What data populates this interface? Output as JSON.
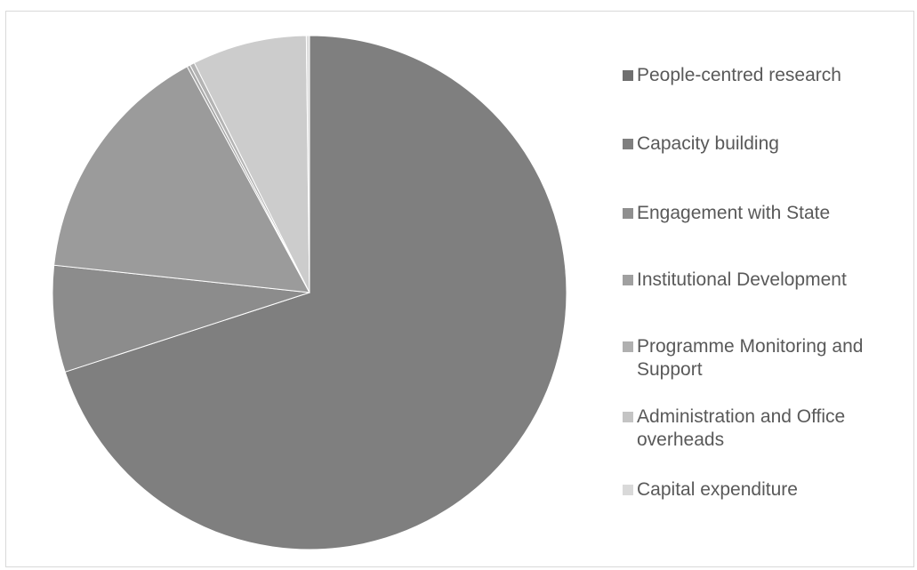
{
  "chart_data": {
    "type": "pie",
    "categories": [
      "People-centred research",
      "Capacity building",
      "Engagement with State",
      "Institutional Development",
      "Programme Monitoring and Support",
      "Administration and Office overheads",
      "Capital expenditure"
    ],
    "values": [
      70.0,
      6.7,
      15.4,
      0.2,
      0.3,
      7.2,
      0.2
    ],
    "value_unit": "percent",
    "colors": [
      "#7f7f7f",
      "#8c8c8c",
      "#9b9b9b",
      "#a9a9a9",
      "#b4b4b4",
      "#cccccc",
      "#dddddd"
    ],
    "legend_colors": [
      "#6f6f6f",
      "#7f7f7f",
      "#8f8f8f",
      "#a0a0a0",
      "#b0b0b0",
      "#c4c4c4",
      "#d9d9d9"
    ],
    "legend": [
      "People-centred research",
      "Capacity building",
      "Engagement with State",
      "Institutional Development",
      "Programme Monitoring and Support",
      "Administration and Office overheads",
      "Capital expenditure"
    ],
    "legend_position": "right",
    "start_angle": "12 o'clock",
    "direction": "clockwise"
  }
}
